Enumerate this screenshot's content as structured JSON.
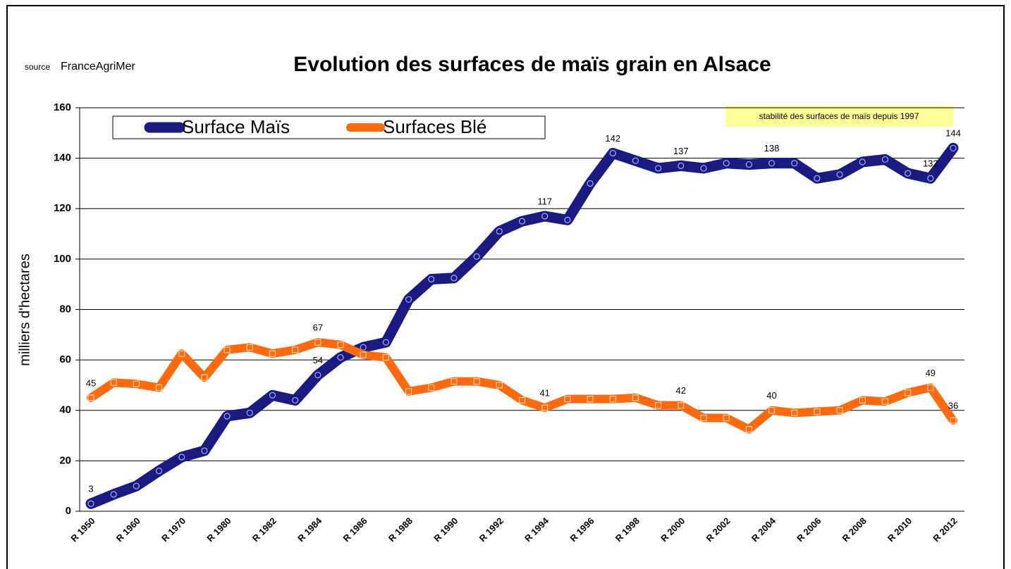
{
  "chart_data": {
    "type": "line",
    "title": "Evolution des surfaces de maïs grain en Alsace",
    "source": {
      "prefix": "source",
      "name": "FranceAgriMer"
    },
    "annotation": "stabilité des surfaces de maïs depuis 1997",
    "y_label": "milliers d'hectares",
    "categories": [
      "R 1950",
      null,
      "R 1960",
      null,
      "R 1970",
      null,
      "R 1980",
      null,
      "R 1982",
      null,
      "R 1984",
      null,
      "R 1986",
      null,
      "R 1988",
      null,
      "R 1990",
      null,
      "R 1992",
      null,
      "R 1994",
      null,
      "R 1996",
      null,
      "R 1998",
      null,
      "R 2000",
      null,
      "R 2002",
      null,
      "R 2004",
      null,
      "R 2006",
      null,
      "R 2008",
      null,
      "R 2010",
      null,
      "R 2012"
    ],
    "series": [
      {
        "name": "Surface Maïs",
        "color": "#1a1a80",
        "marker": "circle",
        "values": [
          3,
          6.7,
          10,
          16,
          21.5,
          24,
          37.7,
          39,
          46,
          44,
          54,
          61,
          65,
          67,
          84,
          92,
          92.5,
          101,
          111,
          115,
          117,
          115.5,
          130,
          142,
          139,
          136,
          137,
          136,
          138,
          137.5,
          138,
          138,
          132,
          133.5,
          138.5,
          139.5,
          134,
          132,
          144
        ],
        "value_labels": [
          "3",
          null,
          null,
          null,
          null,
          null,
          null,
          null,
          null,
          null,
          "54",
          null,
          null,
          null,
          null,
          null,
          null,
          null,
          null,
          null,
          "117",
          null,
          null,
          "142",
          null,
          null,
          "137",
          null,
          null,
          null,
          "138",
          null,
          null,
          null,
          null,
          null,
          null,
          "132",
          "144"
        ]
      },
      {
        "name": "Surfaces Blé",
        "color": "#ff6a10",
        "marker": "square",
        "values": [
          45,
          51,
          50.5,
          49,
          62.5,
          53,
          64,
          65,
          62.5,
          64,
          67,
          66,
          62,
          61,
          47.5,
          49,
          51.5,
          51.5,
          50,
          44,
          41,
          44.5,
          44.5,
          44.5,
          45,
          42,
          42,
          37,
          37,
          32.5,
          40,
          39,
          39.5,
          40,
          44,
          43.5,
          47,
          49,
          36
        ],
        "value_labels": [
          "45",
          null,
          null,
          null,
          null,
          null,
          null,
          null,
          null,
          null,
          "67",
          null,
          null,
          null,
          null,
          null,
          null,
          null,
          null,
          null,
          "41",
          null,
          null,
          null,
          null,
          null,
          "42",
          null,
          null,
          null,
          "40",
          null,
          null,
          null,
          null,
          null,
          null,
          "49",
          "36"
        ]
      }
    ],
    "ylim": [
      0,
      160
    ],
    "yticks": [
      0,
      20,
      40,
      60,
      80,
      100,
      120,
      140,
      160
    ],
    "grid": true,
    "legend": "top-left"
  }
}
